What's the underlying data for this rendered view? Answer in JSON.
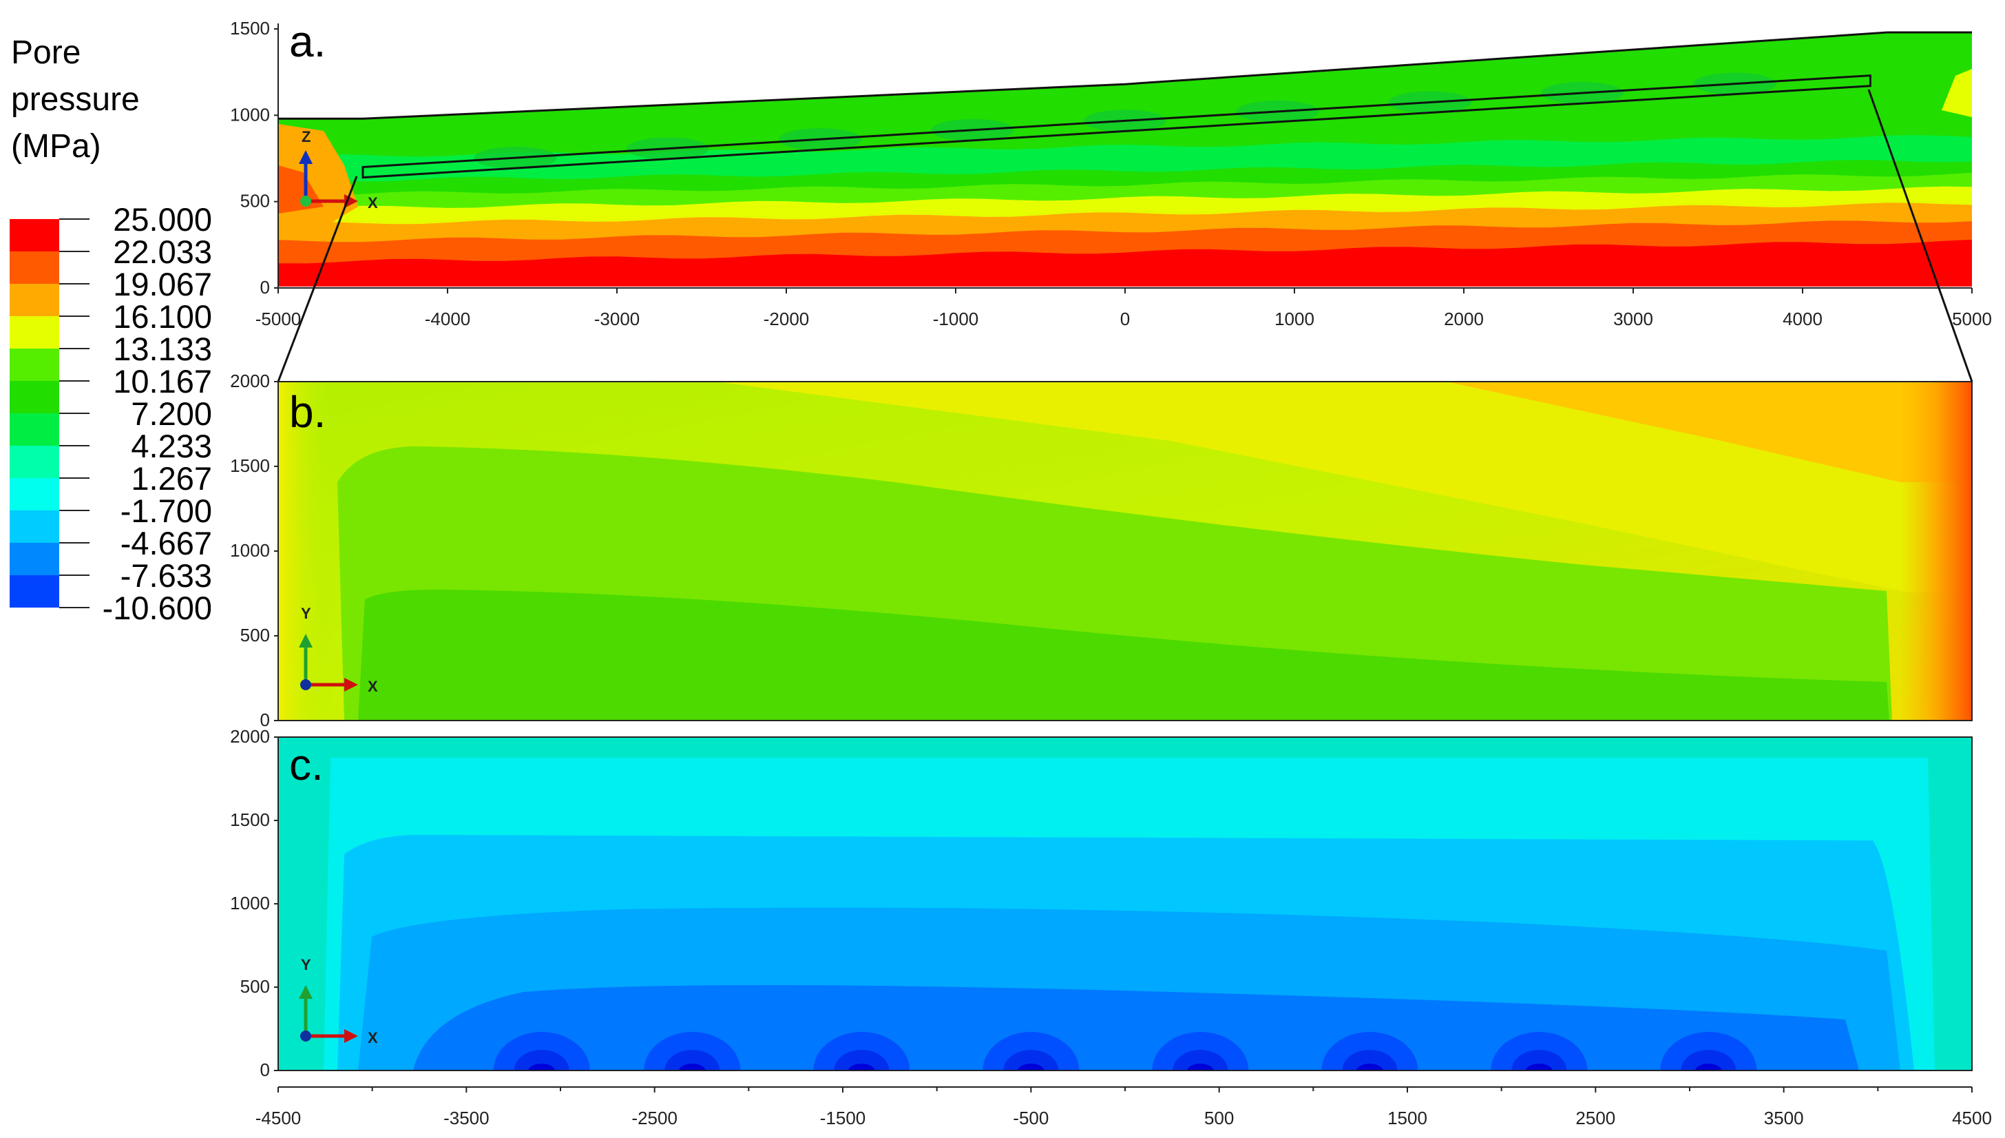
{
  "legend": {
    "title_lines": [
      "Pore",
      "pressure",
      "(MPa)"
    ],
    "values": [
      "25.000",
      "22.033",
      "19.067",
      "16.100",
      "13.133",
      "10.167",
      "7.200",
      "4.233",
      "1.267",
      "-1.700",
      "-4.667",
      "-7.633",
      "-10.600"
    ],
    "colors": [
      "#ff0000",
      "#ff5a00",
      "#ffaa00",
      "#e6ff00",
      "#55ee00",
      "#22dd00",
      "#00ee44",
      "#00ffaa",
      "#00ffee",
      "#00ccff",
      "#0088ff",
      "#0044ff",
      "#0000ee"
    ]
  },
  "chart_data": [
    {
      "type": "heatmap",
      "panel_label": "a.",
      "quantity": "Pore pressure",
      "unit": "MPa",
      "x_ticks": [
        "-5000",
        "-4000",
        "-3000",
        "-2000",
        "-1000",
        "0",
        "1000",
        "2000",
        "3000",
        "4000",
        "5000"
      ],
      "y_ticks": [
        "0",
        "500",
        "1000",
        "1500"
      ],
      "xlim": [
        -5000,
        5000
      ],
      "ylim": [
        0,
        1500
      ],
      "axis_triad": [
        "Z",
        "X"
      ],
      "top_surface": [
        [
          -5000,
          980
        ],
        [
          -4500,
          980
        ],
        [
          0,
          1180
        ],
        [
          4500,
          1480
        ],
        [
          5000,
          1480
        ]
      ],
      "inset_box": [
        [
          -4500,
          640
        ],
        [
          -4500,
          700
        ],
        [
          4400,
          1170
        ],
        [
          4400,
          1230
        ]
      ],
      "bands": [
        {
          "y_top": 150,
          "value": "25.000"
        },
        {
          "y_top": 270,
          "value": "22.033"
        },
        {
          "y_top": 370,
          "value": "19.067"
        },
        {
          "y_top": 460,
          "value": "16.100"
        },
        {
          "y_top": 540,
          "value": "13.133"
        },
        {
          "y_top": 620,
          "value": "10.167"
        },
        {
          "y_top": 760,
          "value": "7.200"
        }
      ]
    },
    {
      "type": "heatmap",
      "panel_label": "b.",
      "x_ticks": [],
      "y_ticks": [
        "0",
        "500",
        "1000",
        "1500",
        "2000"
      ],
      "ylim": [
        0,
        2000
      ],
      "axis_triad": [
        "Y",
        "X"
      ]
    },
    {
      "type": "heatmap",
      "panel_label": "c.",
      "x_ticks": [
        "-4500",
        "-3500",
        "-2500",
        "-1500",
        "-500",
        "500",
        "1500",
        "2500",
        "3500",
        "4500"
      ],
      "y_ticks": [
        "0",
        "500",
        "1000",
        "1500",
        "2000"
      ],
      "xlim": [
        -4500,
        4500
      ],
      "ylim": [
        0,
        2000
      ],
      "axis_triad": [
        "Y",
        "X"
      ],
      "low_spots_x": [
        -3100,
        -2300,
        -1400,
        -500,
        400,
        1300,
        2200,
        3100
      ]
    }
  ]
}
